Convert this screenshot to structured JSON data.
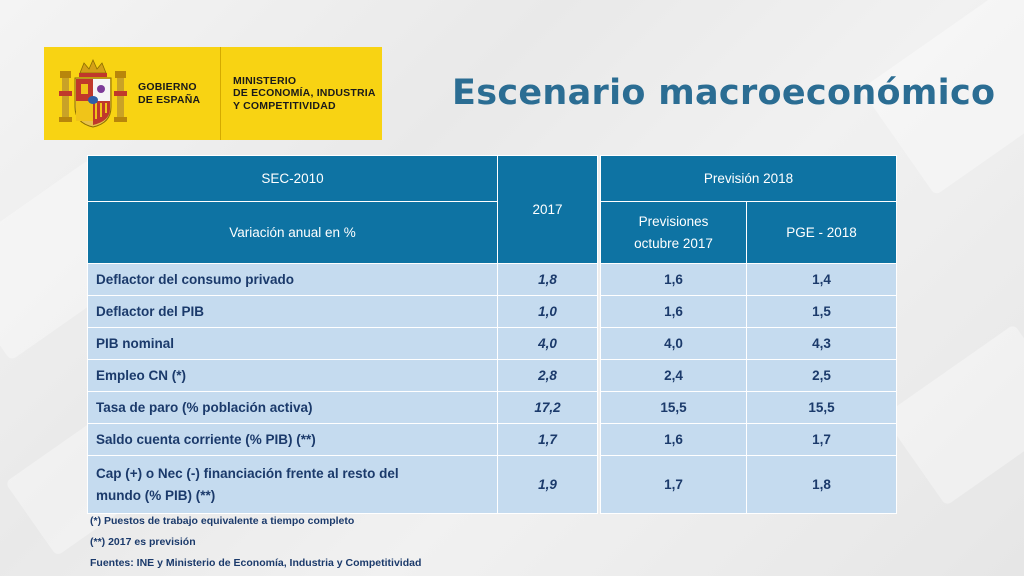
{
  "logo": {
    "gobierno": [
      "GOBIERNO",
      "DE ESPAÑA"
    ],
    "ministerio": [
      "MINISTERIO",
      "DE ECONOMÍA, INDUSTRIA",
      "Y COMPETITIVIDAD"
    ]
  },
  "title": "Escenario macroeconómico",
  "left_table": {
    "header_top": "SEC-2010",
    "header_sub": "Variación anual en %",
    "header_2017": "2017",
    "rows": [
      {
        "label": "Deflactor del consumo privado",
        "v2017": "1,8"
      },
      {
        "label": "Deflactor del PIB",
        "v2017": "1,0"
      },
      {
        "label": "PIB nominal",
        "v2017": "4,0"
      },
      {
        "label": "Empleo CN    (*)",
        "v2017": "2,8"
      },
      {
        "label": "Tasa de paro     (% población activa)",
        "v2017": "17,2"
      },
      {
        "label": "Saldo cuenta corriente       (% PIB) (**)",
        "v2017": "1,7"
      },
      {
        "label": "Cap (+) o Nec (-) financiación frente al resto del mundo   (% PIB) (**)",
        "v2017": "1,9"
      }
    ]
  },
  "right_table": {
    "header_top": "Previsión 2018",
    "col1_header": "Previsiones octubre 2017",
    "col2_header": "PGE - 2018",
    "rows": [
      {
        "previsiones": "1,6",
        "pge": "1,4"
      },
      {
        "previsiones": "1,6",
        "pge": "1,5"
      },
      {
        "previsiones": "4,0",
        "pge": "4,3"
      },
      {
        "previsiones": "2,4",
        "pge": "2,5"
      },
      {
        "previsiones": "15,5",
        "pge": "15,5"
      },
      {
        "previsiones": "1,6",
        "pge": "1,7"
      },
      {
        "previsiones": "1,7",
        "pge": "1,8"
      }
    ]
  },
  "footnotes": {
    "note1": "(*) Puestos de trabajo equivalente a tiempo completo",
    "note2": "(**) 2017 es previsión",
    "source": "Fuentes: INE y Ministerio de Economía, Industria y Competitividad"
  },
  "colors": {
    "header_bg": "#0e73a3",
    "cell_bg": "#c5dbef",
    "title": "#2b6d93",
    "banner": "#f8d313"
  }
}
